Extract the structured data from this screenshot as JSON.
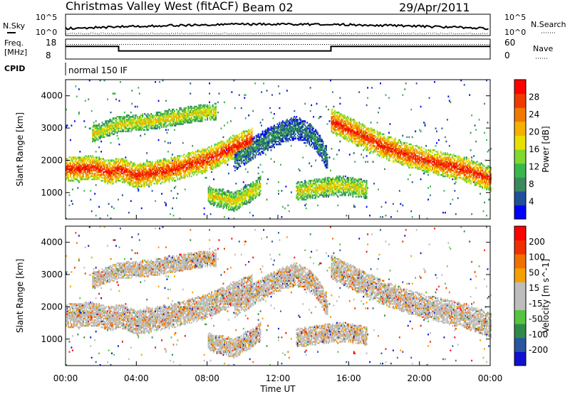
{
  "header": {
    "site": "Christmas Valley West (fitACF)",
    "beam": "Beam 02",
    "date": "29/Apr/2011"
  },
  "noise_panel": {
    "left_label": "N.Sky",
    "right_label": "N.Search",
    "left_ticks": [
      "10^5",
      "10^0"
    ],
    "right_ticks": [
      "10^5",
      "10^0"
    ]
  },
  "freq_panel": {
    "left_label_1": "Freq.",
    "left_label_2": "[MHz]",
    "right_label": "Nave",
    "left_ticks": [
      "18",
      "8"
    ],
    "right_ticks": [
      "60",
      "0"
    ]
  },
  "cpid_panel": {
    "label": "CPID",
    "text": "normal 150 IF"
  },
  "x_axis": {
    "label": "Time UT",
    "ticks": [
      "00:00",
      "04:00",
      "08:00",
      "12:00",
      "16:00",
      "20:00",
      "00:00"
    ]
  },
  "power_panel": {
    "ylabel": "Slant Range [km]",
    "yticks": [
      "4000",
      "3000",
      "2000",
      "1000"
    ],
    "colorbar_label": "Power [dB]",
    "colorbar_ticks": [
      "28",
      "24",
      "20",
      "16",
      "12",
      "8",
      "4"
    ],
    "colors": [
      "#0000ff",
      "#20509a",
      "#3a8a5e",
      "#39b84a",
      "#80d830",
      "#e8e000",
      "#f5b000",
      "#f07a00",
      "#ef3a00",
      "#ff0000"
    ]
  },
  "velocity_panel": {
    "ylabel": "Slant Range [km]",
    "yticks": [
      "4000",
      "3000",
      "2000",
      "1000"
    ],
    "colorbar_label": "Velocity [m s^-1]",
    "colorbar_ticks": [
      "200",
      "100",
      "50",
      "15",
      "-15",
      "-50",
      "-100",
      "-200"
    ],
    "colors": [
      "#1010d0",
      "#2a55a0",
      "#2f8a4a",
      "#55c440",
      "#bdbdbd",
      "#bdbdbd",
      "#f5a000",
      "#f07000",
      "#f03000",
      "#ff0000"
    ]
  },
  "chart_data": {
    "type": "heatmap",
    "x_range_hours": [
      0,
      24
    ],
    "y_range_km": [
      180,
      4500
    ],
    "frequency_mhz": [
      {
        "from_hour": 0,
        "to_hour": 3,
        "value": 15
      },
      {
        "from_hour": 3,
        "to_hour": 15,
        "value": 12
      },
      {
        "from_hour": 15,
        "to_hour": 24,
        "value": 15
      }
    ],
    "nave_approx": 50,
    "echo_bands": [
      {
        "name": "",
        "points": [
          [
            0,
            1700
          ],
          [
            1.5,
            1750
          ],
          [
            2.5,
            1600
          ],
          [
            3,
            1700
          ],
          [
            4,
            1500
          ],
          [
            6,
            1700
          ],
          [
            8,
            2000
          ],
          [
            9.5,
            2400
          ],
          [
            10.5,
            2600
          ]
        ],
        "width_km": 380,
        "power": "strong"
      },
      {
        "name": "",
        "points": [
          [
            1.5,
            2800
          ],
          [
            3,
            3100
          ],
          [
            5,
            3200
          ],
          [
            7,
            3400
          ],
          [
            8.5,
            3500
          ]
        ],
        "width_km": 260,
        "power": "medium"
      },
      {
        "name": "",
        "points": [
          [
            9.5,
            2000
          ],
          [
            11,
            2500
          ],
          [
            12,
            2800
          ],
          [
            13,
            3000
          ],
          [
            14,
            2700
          ],
          [
            14.8,
            2000
          ]
        ],
        "width_km": 350,
        "power": "weak"
      },
      {
        "name": "",
        "points": [
          [
            15,
            3200
          ],
          [
            16.5,
            2800
          ],
          [
            18,
            2400
          ],
          [
            19.5,
            2100
          ],
          [
            21,
            1900
          ],
          [
            22.5,
            1700
          ],
          [
            24,
            1400
          ]
        ],
        "width_km": 380,
        "power": "strong"
      },
      {
        "name": "",
        "points": [
          [
            8,
            900
          ],
          [
            9.5,
            700
          ],
          [
            10.5,
            1000
          ],
          [
            11,
            1200
          ]
        ],
        "width_km": 300,
        "power": "medium"
      },
      {
        "name": "",
        "points": [
          [
            13,
            1000
          ],
          [
            14,
            1100
          ],
          [
            15.5,
            1200
          ],
          [
            17,
            1100
          ]
        ],
        "width_km": 300,
        "power": "medium"
      }
    ]
  }
}
